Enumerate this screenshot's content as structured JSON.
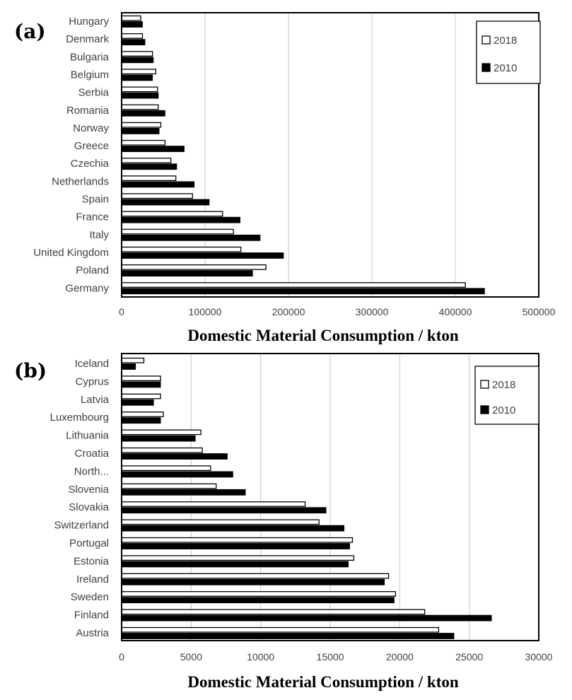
{
  "chart_data": [
    {
      "type": "bar",
      "orientation": "horizontal",
      "panel_label": "(a)",
      "categories": [
        "Hungary",
        "Denmark",
        "Bulgaria",
        "Belgium",
        "Serbia",
        "Romania",
        "Norway",
        "Greece",
        "Czechia",
        "Netherlands",
        "Spain",
        "France",
        "Italy",
        "United Kingdom",
        "Poland",
        "Germany"
      ],
      "series": [
        {
          "name": "2018",
          "color": "#ffffff",
          "values": [
            23000,
            25000,
            37000,
            41000,
            43000,
            44000,
            47000,
            52000,
            59000,
            65000,
            85000,
            121000,
            134000,
            143000,
            173000,
            412000
          ]
        },
        {
          "name": "2010",
          "color": "#000000",
          "values": [
            25000,
            28000,
            38000,
            37000,
            44000,
            52000,
            45000,
            75000,
            66000,
            87000,
            105000,
            142000,
            166000,
            194000,
            157000,
            435000
          ]
        }
      ],
      "xlabel": "Domestic Material Consumption / kton",
      "ylabel": "",
      "xlim": [
        0,
        500000
      ],
      "xticks": [
        0,
        100000,
        200000,
        300000,
        400000,
        500000
      ],
      "xtick_labels": [
        "0",
        "100000",
        "200000",
        "300000",
        "400000",
        "500000"
      ],
      "grid": true,
      "legend_position": "top-right"
    },
    {
      "type": "bar",
      "orientation": "horizontal",
      "panel_label": "(b)",
      "categories": [
        "Iceland",
        "Cyprus",
        "Latvia",
        "Luxembourg",
        "Lithuania",
        "Croatia",
        "North...",
        "Slovenia",
        "Slovakia",
        "Switzerland",
        "Portugal",
        "Estonia",
        "Ireland",
        "Sweden",
        "Finland",
        "Austria"
      ],
      "series": [
        {
          "name": "2018",
          "color": "#ffffff",
          "values": [
            1600,
            2800,
            2800,
            3000,
            5700,
            5800,
            6400,
            6800,
            13200,
            14200,
            16600,
            16700,
            19200,
            19700,
            21800,
            22800
          ]
        },
        {
          "name": "2010",
          "color": "#000000",
          "values": [
            1000,
            2800,
            2300,
            2800,
            5300,
            7600,
            8000,
            8900,
            14700,
            16000,
            16400,
            16300,
            18900,
            19600,
            26600,
            23900
          ]
        }
      ],
      "xlabel": "Domestic Material Consumption / kton",
      "ylabel": "",
      "xlim": [
        0,
        30000
      ],
      "xticks": [
        0,
        5000,
        10000,
        15000,
        20000,
        25000,
        30000
      ],
      "xtick_labels": [
        "0",
        "5000",
        "10000",
        "15000",
        "20000",
        "25000",
        "30000"
      ],
      "grid": true,
      "legend_position": "top-right"
    }
  ]
}
